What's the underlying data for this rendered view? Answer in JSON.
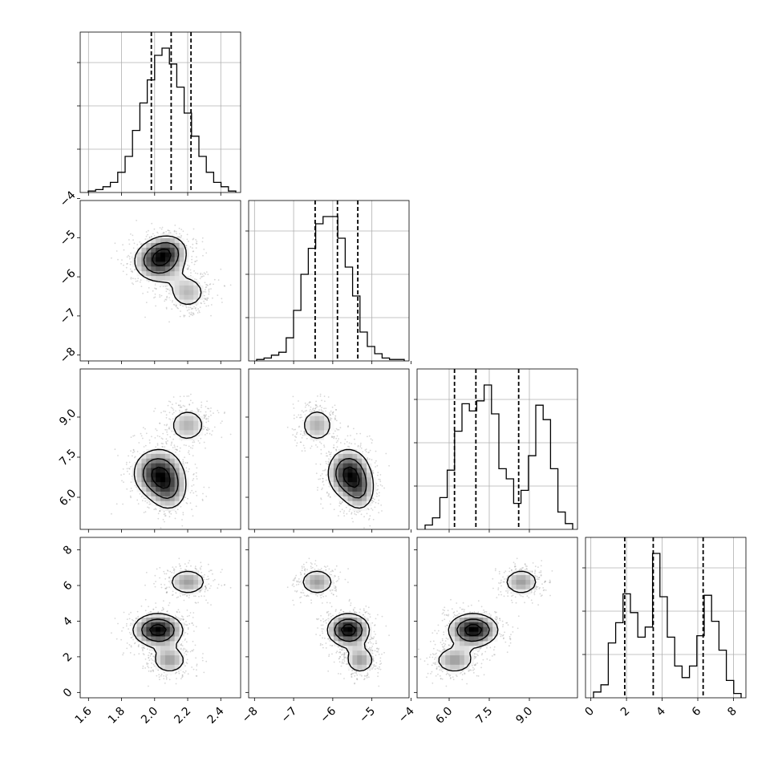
{
  "chart_data": {
    "type": "corner",
    "title": "",
    "parameters": [
      {
        "label": "",
        "range": [
          1.55,
          2.52
        ],
        "ticks": [
          1.6,
          1.8,
          2.0,
          2.2,
          2.4
        ],
        "tick_labels": [
          "1.6",
          "1.8",
          "2.0",
          "2.2",
          "2.4"
        ],
        "quantiles": [
          1.98,
          2.1,
          2.22
        ]
      },
      {
        "label": "",
        "range": [
          -8.15,
          -4.05
        ],
        "ticks": [
          -8,
          -7,
          -6,
          -5,
          -4
        ],
        "tick_labels": [
          "−8",
          "−7",
          "−6",
          "−5",
          "−4"
        ],
        "quantiles": [
          -6.45,
          -5.88,
          -5.36
        ]
      },
      {
        "label": "",
        "range": [
          4.8,
          10.8
        ],
        "ticks": [
          6.0,
          7.5,
          9.0
        ],
        "tick_labels": [
          "6.0",
          "7.5",
          "9.0"
        ],
        "quantiles": [
          6.2,
          7.0,
          8.6
        ]
      },
      {
        "label": "",
        "range": [
          -0.3,
          8.7
        ],
        "ticks": [
          0,
          2,
          4,
          6,
          8
        ],
        "tick_labels": [
          "0",
          "2",
          "4",
          "6",
          "8"
        ],
        "quantiles": [
          1.9,
          3.5,
          6.3
        ]
      }
    ],
    "histograms": [
      [
        0.01,
        0.02,
        0.04,
        0.07,
        0.14,
        0.25,
        0.43,
        0.62,
        0.78,
        0.95,
        1.0,
        0.89,
        0.73,
        0.55,
        0.39,
        0.25,
        0.14,
        0.07,
        0.04,
        0.01
      ],
      [
        0.01,
        0.02,
        0.04,
        0.06,
        0.16,
        0.35,
        0.6,
        0.78,
        0.95,
        1.0,
        1.0,
        0.85,
        0.65,
        0.45,
        0.2,
        0.1,
        0.05,
        0.02,
        0.01,
        0.01
      ],
      [
        0.03,
        0.08,
        0.22,
        0.41,
        0.68,
        0.87,
        0.82,
        0.89,
        1.0,
        0.8,
        0.42,
        0.35,
        0.18,
        0.27,
        0.51,
        0.86,
        0.76,
        0.42,
        0.12,
        0.04
      ],
      [
        0.04,
        0.09,
        0.38,
        0.52,
        0.72,
        0.59,
        0.42,
        0.49,
        1.0,
        0.7,
        0.42,
        0.22,
        0.14,
        0.22,
        0.43,
        0.71,
        0.53,
        0.33,
        0.12,
        0.03
      ]
    ],
    "hist_yticks": [
      0.3,
      0.6,
      0.9
    ],
    "modes": [
      {
        "w": 0.5,
        "mean": [
          2.02,
          -5.6,
          6.9,
          3.5
        ],
        "sd": [
          0.09,
          0.32,
          0.55,
          0.55
        ]
      },
      {
        "w": 0.25,
        "mean": [
          2.09,
          -5.3,
          6.2,
          1.8
        ],
        "sd": [
          0.07,
          0.25,
          0.5,
          0.5
        ]
      },
      {
        "w": 0.25,
        "mean": [
          2.2,
          -6.4,
          8.7,
          6.2
        ],
        "sd": [
          0.08,
          0.3,
          0.45,
          0.5
        ]
      }
    ],
    "contour_levels": [
      0.25,
      0.55,
      0.85
    ],
    "grid": true,
    "legend": "none"
  }
}
